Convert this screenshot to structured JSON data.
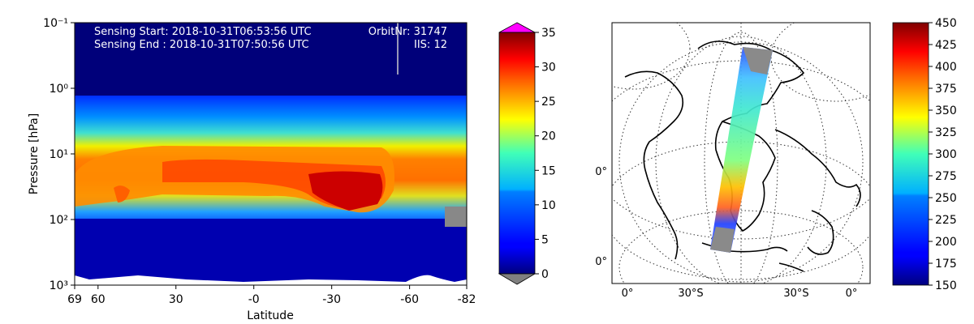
{
  "chart_data": [
    {
      "type": "heatmap",
      "title": "",
      "xlabel": "Latitude",
      "ylabel": "Pressure [hPa]",
      "x_ticks": [
        "69",
        "60",
        "30",
        "-0",
        "-30",
        "-60",
        "-82"
      ],
      "y_ticks": [
        "10⁻¹",
        "10⁰",
        "10¹",
        "10²",
        "10³"
      ],
      "y_scale": "log",
      "ylim": [
        1000,
        0.1
      ],
      "annotations": {
        "sensing_start": "Sensing Start: 2018-10-31T06:53:56 UTC",
        "sensing_end": "Sensing End  : 2018-10-31T07:50:56 UTC",
        "orbit": "OrbitNr: 31747",
        "iis": "IIS: 12"
      },
      "colorbar": {
        "ticks": [
          "0",
          "5",
          "10",
          "15",
          "20",
          "25",
          "30",
          "35"
        ],
        "range": [
          0,
          35
        ],
        "extend": "both",
        "over_color": "#ff00ff",
        "under_color": "#808080",
        "colormap": "jet"
      }
    },
    {
      "type": "map",
      "title": "",
      "projection": "orthographic",
      "grid_labels": {
        "left_top": "0°",
        "left_bottom": "0°",
        "bottom": [
          "0°",
          "30°S",
          "30°S",
          "0°"
        ]
      },
      "colorbar": {
        "ticks": [
          "150",
          "175",
          "200",
          "225",
          "250",
          "275",
          "300",
          "325",
          "350",
          "375",
          "400",
          "425",
          "450"
        ],
        "range": [
          150,
          450
        ],
        "colormap": "jet"
      }
    }
  ]
}
